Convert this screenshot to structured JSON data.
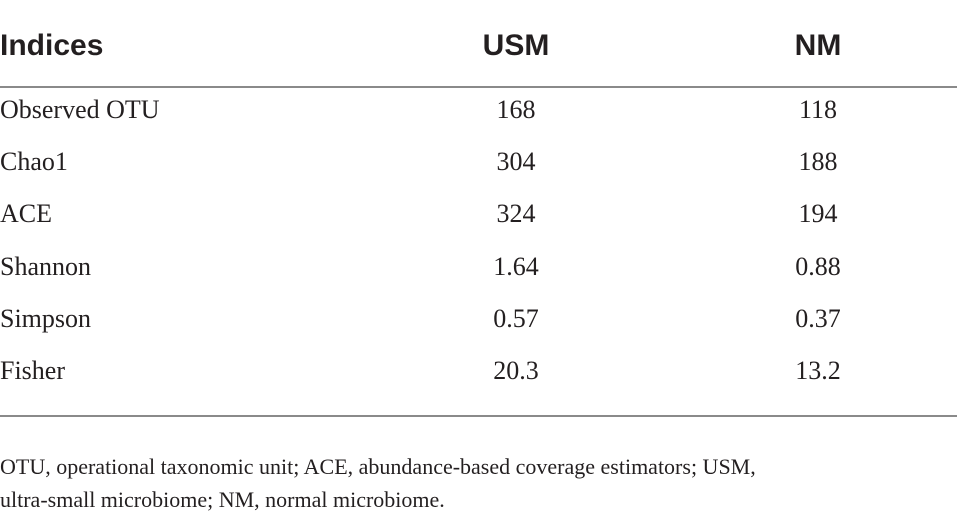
{
  "table": {
    "header": [
      "Indices",
      "USM",
      "NM"
    ],
    "rows": [
      [
        "Observed OTU",
        "168",
        "118"
      ],
      [
        "Chao1",
        "304",
        "188"
      ],
      [
        "ACE",
        "324",
        "194"
      ],
      [
        "Shannon",
        "1.64",
        "0.88"
      ],
      [
        "Simpson",
        "0.57",
        "0.37"
      ],
      [
        "Fisher",
        "20.3",
        "13.2"
      ]
    ]
  },
  "footnote": [
    "OTU, operational taxonomic unit; ACE, abundance-based coverage estimators; USM,",
    "ultra-small microbiome; NM, normal microbiome."
  ]
}
